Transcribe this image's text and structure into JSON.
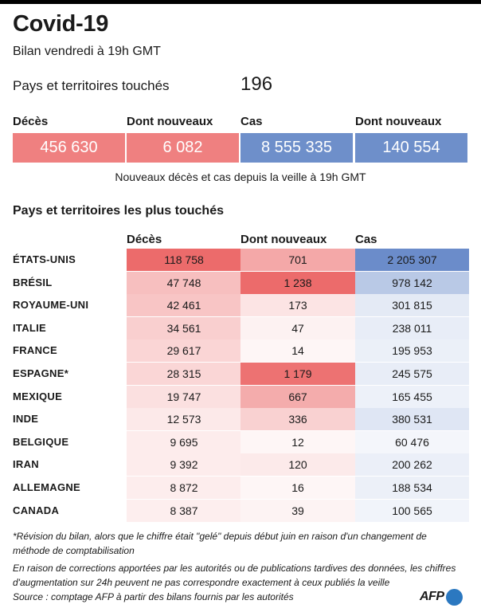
{
  "header": {
    "title": "Covid-19",
    "subtitle": "Bilan vendredi à 19h GMT",
    "countries_label": "Pays et territoires touchés",
    "countries_value": "196"
  },
  "summary": {
    "items": [
      {
        "label": "Décès",
        "value": "456 630",
        "color": "#ef8080"
      },
      {
        "label": "Dont nouveaux",
        "value": "6 082",
        "color": "#ef8080"
      },
      {
        "label": "Cas",
        "value": "8 555 335",
        "color": "#6e8fca"
      },
      {
        "label": "Dont nouveaux",
        "value": "140 554",
        "color": "#6e8fca"
      }
    ],
    "note": "Nouveaux décès et cas depuis la veille à 19h GMT"
  },
  "table_title": "Pays et territoires les plus touchés",
  "colors": {
    "red": "#ec6b6b",
    "blue": "#6b8cca"
  },
  "chart_data": {
    "type": "table",
    "columns": [
      "Décès",
      "Dont nouveaux",
      "Cas"
    ],
    "rows": [
      {
        "country": "ÉTATS-UNIS",
        "deces": 118758,
        "deces_txt": "118 758",
        "nouveaux": 701,
        "nouveaux_txt": "701",
        "cas": 2205307,
        "cas_txt": "2 205 307"
      },
      {
        "country": "BRÉSIL",
        "deces": 47748,
        "deces_txt": "47 748",
        "nouveaux": 1238,
        "nouveaux_txt": "1 238",
        "cas": 978142,
        "cas_txt": "978 142"
      },
      {
        "country": "ROYAUME-UNI",
        "deces": 42461,
        "deces_txt": "42 461",
        "nouveaux": 173,
        "nouveaux_txt": "173",
        "cas": 301815,
        "cas_txt": "301 815"
      },
      {
        "country": "ITALIE",
        "deces": 34561,
        "deces_txt": "34 561",
        "nouveaux": 47,
        "nouveaux_txt": "47",
        "cas": 238011,
        "cas_txt": "238 011"
      },
      {
        "country": "FRANCE",
        "deces": 29617,
        "deces_txt": "29 617",
        "nouveaux": 14,
        "nouveaux_txt": "14",
        "cas": 195953,
        "cas_txt": "195 953"
      },
      {
        "country": "ESPAGNE*",
        "deces": 28315,
        "deces_txt": "28 315",
        "nouveaux": 1179,
        "nouveaux_txt": "1 179",
        "cas": 245575,
        "cas_txt": "245 575"
      },
      {
        "country": "MEXIQUE",
        "deces": 19747,
        "deces_txt": "19 747",
        "nouveaux": 667,
        "nouveaux_txt": "667",
        "cas": 165455,
        "cas_txt": "165 455"
      },
      {
        "country": "INDE",
        "deces": 12573,
        "deces_txt": "12 573",
        "nouveaux": 336,
        "nouveaux_txt": "336",
        "cas": 380531,
        "cas_txt": "380 531"
      },
      {
        "country": "BELGIQUE",
        "deces": 9695,
        "deces_txt": "9 695",
        "nouveaux": 12,
        "nouveaux_txt": "12",
        "cas": 60476,
        "cas_txt": "60 476"
      },
      {
        "country": "IRAN",
        "deces": 9392,
        "deces_txt": "9 392",
        "nouveaux": 120,
        "nouveaux_txt": "120",
        "cas": 200262,
        "cas_txt": "200 262"
      },
      {
        "country": "ALLEMAGNE",
        "deces": 8872,
        "deces_txt": "8 872",
        "nouveaux": 16,
        "nouveaux_txt": "16",
        "cas": 188534,
        "cas_txt": "188 534"
      },
      {
        "country": "CANADA",
        "deces": 8387,
        "deces_txt": "8 387",
        "nouveaux": 39,
        "nouveaux_txt": "39",
        "cas": 100565,
        "cas_txt": "100 565"
      }
    ]
  },
  "footnotes": {
    "revision": "*Révision du bilan, alors que le chiffre était \"gelé\" depuis début juin en raison d'un changement de méthode de comptabilisation",
    "corrections": "En raison de corrections apportées par les autorités ou de publications tardives des données, les chiffres d'augmentation sur 24h peuvent ne pas correspondre exactement à ceux publiés la veille",
    "source": "Source : comptage AFP à partir des bilans fournis par les autorités"
  },
  "logo": {
    "text": "AFP"
  }
}
